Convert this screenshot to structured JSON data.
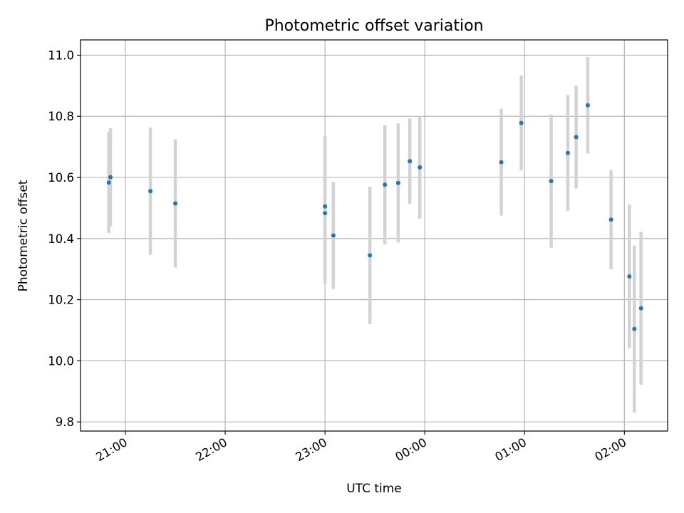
{
  "chart_data": {
    "type": "scatter",
    "title": "Photometric offset variation",
    "xlabel": "UTC time",
    "ylabel": "Photometric offset",
    "x_axis_type": "time",
    "xlim": [
      "20:33",
      "02:26"
    ],
    "ylim": [
      9.77,
      11.05
    ],
    "x_ticks": [
      "21:00",
      "22:00",
      "23:00",
      "00:00",
      "01:00",
      "02:00"
    ],
    "y_ticks": [
      9.8,
      10.0,
      10.2,
      10.4,
      10.6,
      10.8,
      11.0
    ],
    "grid": true,
    "point_color": "#1f77b4",
    "errorbar_color": "#d3d3d3",
    "points": [
      {
        "x": "20:50",
        "y": 10.583,
        "err": 0.165
      },
      {
        "x": "20:51",
        "y": 10.601,
        "err": 0.16
      },
      {
        "x": "21:15",
        "y": 10.555,
        "err": 0.208
      },
      {
        "x": "21:30",
        "y": 10.515,
        "err": 0.21
      },
      {
        "x": "23:00",
        "y": 10.505,
        "err": 0.23
      },
      {
        "x": "23:00",
        "y": 10.483,
        "err": 0.23
      },
      {
        "x": "23:05",
        "y": 10.41,
        "err": 0.175
      },
      {
        "x": "23:27",
        "y": 10.345,
        "err": 0.225
      },
      {
        "x": "23:36",
        "y": 10.576,
        "err": 0.195
      },
      {
        "x": "23:44",
        "y": 10.582,
        "err": 0.195
      },
      {
        "x": "23:51",
        "y": 10.653,
        "err": 0.14
      },
      {
        "x": "23:57",
        "y": 10.633,
        "err": 0.168
      },
      {
        "x": "00:46",
        "y": 10.65,
        "err": 0.175
      },
      {
        "x": "00:58",
        "y": 10.778,
        "err": 0.155
      },
      {
        "x": "01:16",
        "y": 10.588,
        "err": 0.218
      },
      {
        "x": "01:26",
        "y": 10.68,
        "err": 0.19
      },
      {
        "x": "01:31",
        "y": 10.732,
        "err": 0.168
      },
      {
        "x": "01:38",
        "y": 10.836,
        "err": 0.158
      },
      {
        "x": "01:52",
        "y": 10.462,
        "err": 0.162
      },
      {
        "x": "02:03",
        "y": 10.276,
        "err": 0.235
      },
      {
        "x": "02:06",
        "y": 10.104,
        "err": 0.273
      },
      {
        "x": "02:10",
        "y": 10.172,
        "err": 0.25
      }
    ]
  }
}
